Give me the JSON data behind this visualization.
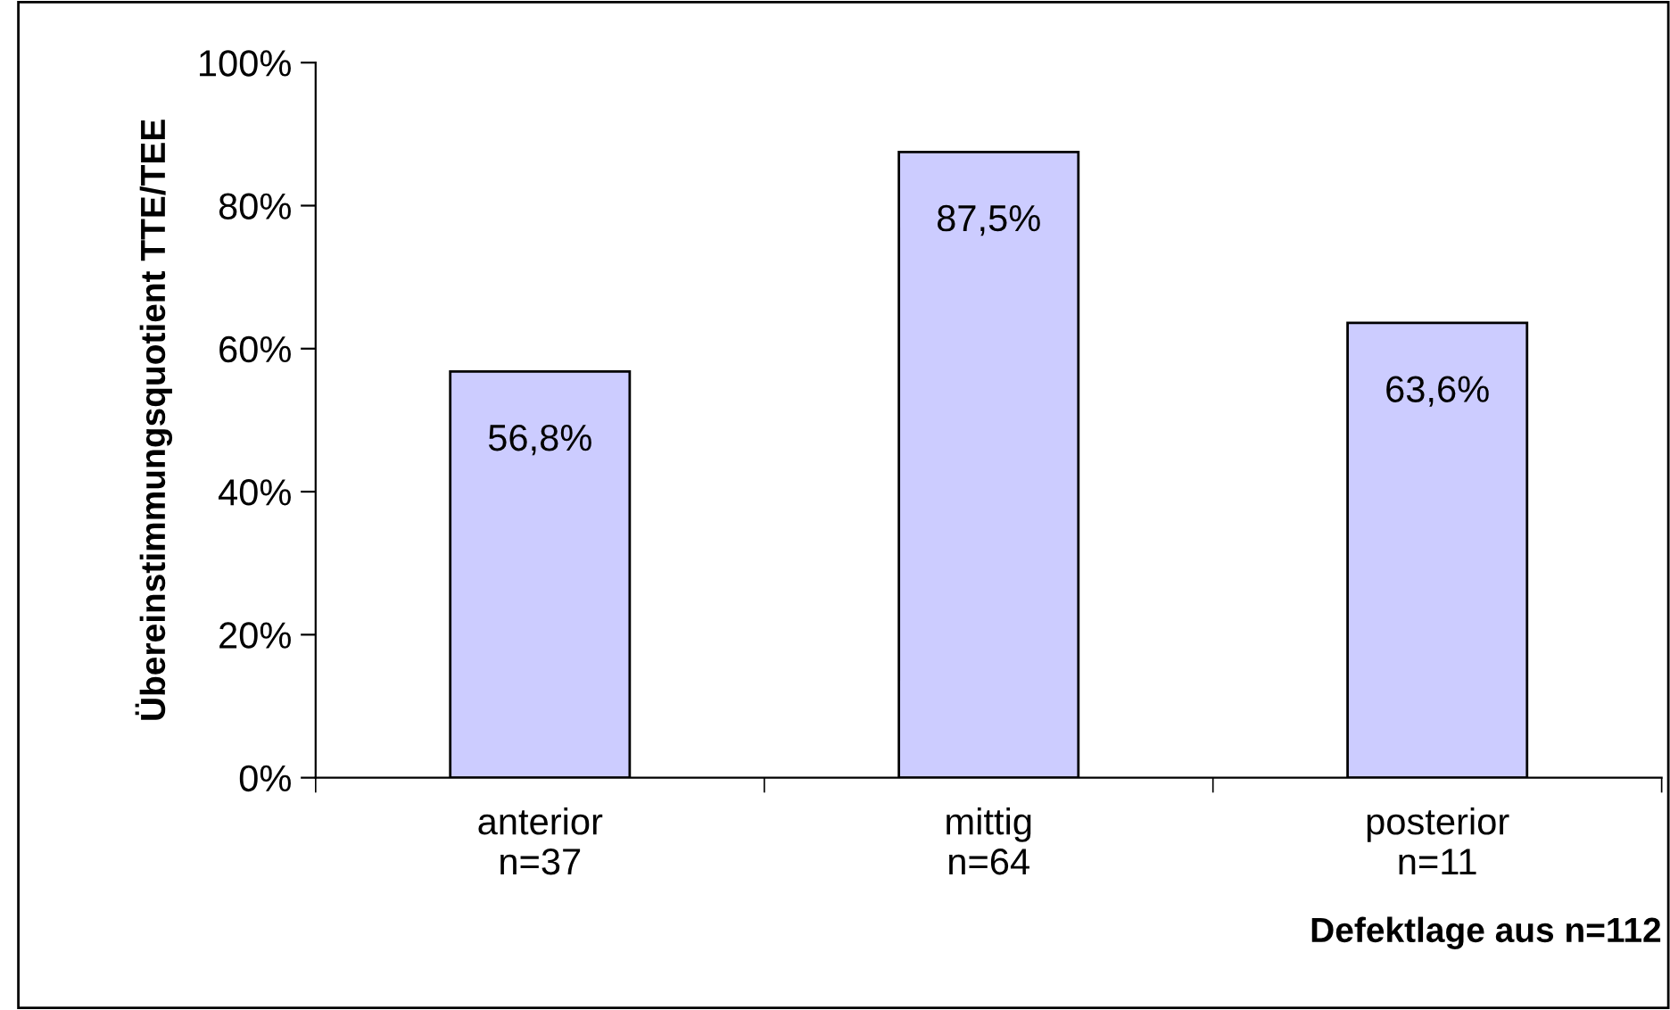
{
  "chart_data": {
    "type": "bar",
    "ylabel": "Übereinstimmungsquotient TTE/TEE",
    "xlabel": "Defektlage aus n=112",
    "categories": [
      "anterior\nn=37",
      "mittig\nn=64",
      "posterior\nn=11"
    ],
    "values": [
      56.8,
      87.5,
      63.6
    ],
    "value_labels": [
      "56,8%",
      "87,5%",
      "63,6%"
    ],
    "color": "#ccccff",
    "ylim": [
      0,
      100
    ],
    "yticks": [
      {
        "value": 0,
        "label": "0%"
      },
      {
        "value": 20,
        "label": "20%"
      },
      {
        "value": 40,
        "label": "40%"
      },
      {
        "value": 60,
        "label": "60%"
      },
      {
        "value": 80,
        "label": "80%"
      },
      {
        "value": 100,
        "label": "100%"
      }
    ],
    "grid": false,
    "legend": false
  }
}
